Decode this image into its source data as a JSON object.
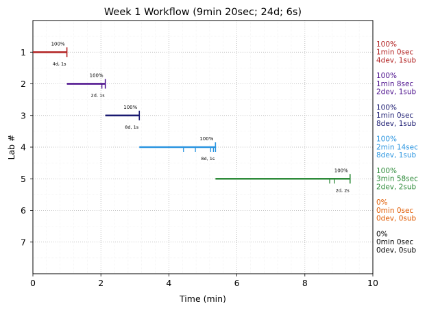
{
  "chart_data": {
    "type": "timeline",
    "title": "Week 1 Workflow (9min 20sec; 24d; 6s)",
    "xlabel": "Time (min)",
    "ylabel": "Lab #",
    "xlim": [
      0,
      10
    ],
    "ylim": [
      8,
      0
    ],
    "x_ticks": [
      "0",
      "2",
      "4",
      "6",
      "8",
      "10"
    ],
    "y_ticks": [
      "1",
      "2",
      "3",
      "4",
      "5",
      "6",
      "7"
    ],
    "grid": true,
    "series": [
      {
        "lab": 1,
        "color": "#b22222",
        "start": 0.0,
        "end": 1.0,
        "percent_label": "100%",
        "count_label": "4d, 1s",
        "ticks": [
          1.0
        ],
        "summary": [
          "100%",
          "1min 0sec",
          "4dev, 1sub"
        ]
      },
      {
        "lab": 2,
        "color": "#4b0f8c",
        "start": 1.0,
        "end": 2.13,
        "percent_label": "100%",
        "count_label": "2d, 1s",
        "ticks": [
          2.03,
          2.13
        ],
        "summary": [
          "100%",
          "1min 8sec",
          "2dev, 1sub"
        ]
      },
      {
        "lab": 3,
        "color": "#191970",
        "start": 2.13,
        "end": 3.13,
        "percent_label": "100%",
        "count_label": "8d, 1s",
        "ticks": [
          3.13
        ],
        "summary": [
          "100%",
          "1min 0sec",
          "8dev, 1sub"
        ]
      },
      {
        "lab": 4,
        "color": "#2b95e0",
        "start": 3.13,
        "end": 5.37,
        "percent_label": "100%",
        "count_label": "8d, 1s",
        "ticks": [
          4.43,
          4.78,
          5.23,
          5.31,
          5.37
        ],
        "summary": [
          "100%",
          "2min 14sec",
          "8dev, 1sub"
        ]
      },
      {
        "lab": 5,
        "color": "#2e8b3a",
        "start": 5.37,
        "end": 9.33,
        "percent_label": "100%",
        "count_label": "2d, 2s",
        "ticks": [
          8.73,
          8.87,
          9.33
        ],
        "summary": [
          "100%",
          "3min 58sec",
          "2dev, 2sub"
        ]
      },
      {
        "lab": 6,
        "color": "#e05a00",
        "start": null,
        "end": null,
        "percent_label": "",
        "count_label": "",
        "ticks": [],
        "summary": [
          "0%",
          "0min 0sec",
          "0dev, 0sub"
        ]
      },
      {
        "lab": 7,
        "color": "#000000",
        "start": null,
        "end": null,
        "percent_label": "",
        "count_label": "",
        "ticks": [],
        "summary": [
          "0%",
          "0min 0sec",
          "0dev, 0sub"
        ]
      }
    ]
  }
}
